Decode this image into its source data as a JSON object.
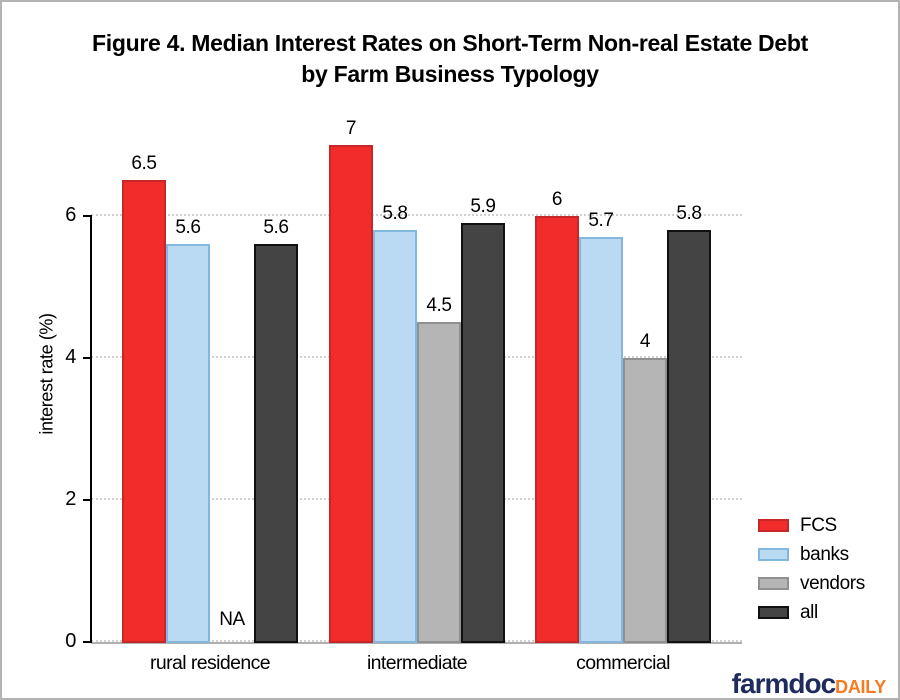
{
  "figure": {
    "background": "#ffffff",
    "border_color": "#b3b3b3"
  },
  "chart_data": {
    "type": "bar",
    "title_line1": "Figure 4. Median Interest Rates on Short-Term Non-real Estate Debt",
    "title_line2": "by Farm Business Typology",
    "ylabel": "interest rate (%)",
    "yticks": [
      "0",
      "2",
      "4",
      "6"
    ],
    "ylim": [
      0,
      7.4
    ],
    "grid": "dotted-horizontal",
    "legend_position": "right-bottom",
    "na_label": "NA",
    "categories": [
      "rural residence",
      "intermediate",
      "commercial"
    ],
    "series": [
      {
        "name": "FCS",
        "fill": "#F22B2B",
        "border": "#C62828",
        "values": [
          "6.5",
          "7",
          "6"
        ]
      },
      {
        "name": "banks",
        "fill": "#B9DAF2",
        "border": "#82B8DE",
        "values": [
          "5.6",
          "5.8",
          "5.7"
        ]
      },
      {
        "name": "vendors",
        "fill": "#B5B5B5",
        "border": "#909090",
        "values": [
          "NA",
          "4.5",
          "4"
        ]
      },
      {
        "name": "all",
        "fill": "#444444",
        "border": "#111111",
        "values": [
          "5.6",
          "5.9",
          "5.8"
        ]
      }
    ]
  },
  "branding": {
    "name": "farmdoc",
    "suffix": "DAILY",
    "name_color": "#1E2B5C",
    "suffix_color": "#F47B20"
  }
}
